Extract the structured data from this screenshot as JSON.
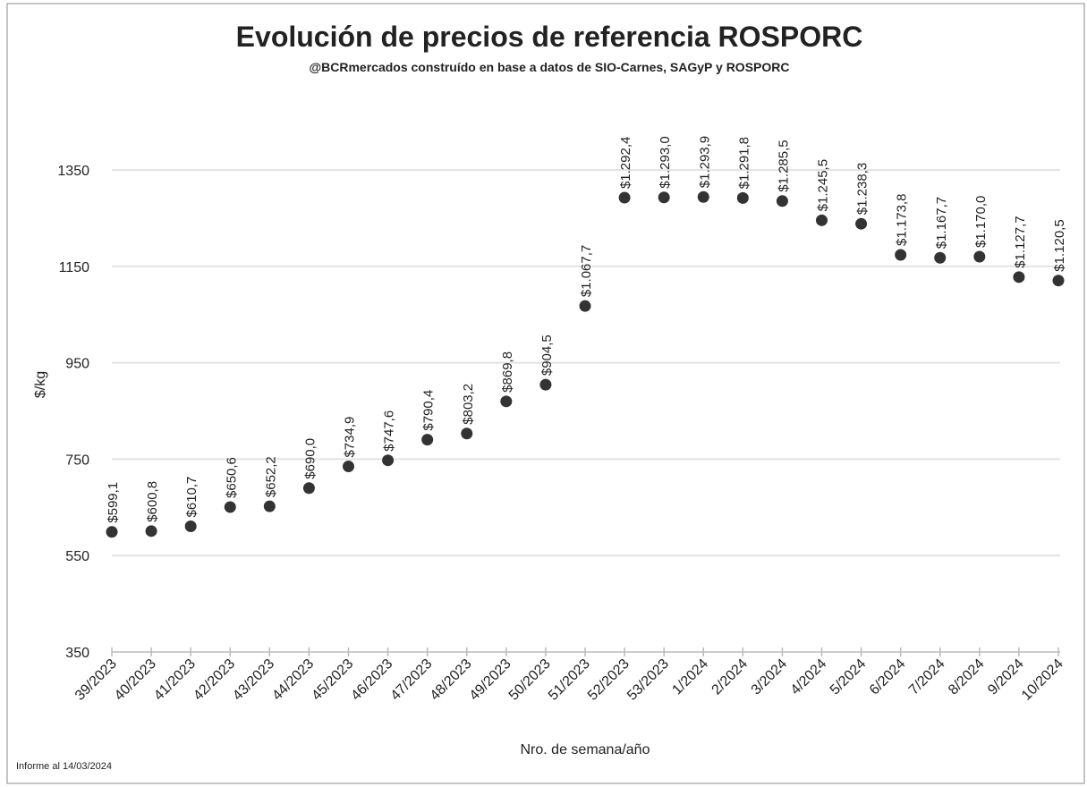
{
  "chart_data": {
    "type": "line",
    "title": "Evolución de precios de referencia ROSPORC",
    "subtitle": "@BCRmercados construído en base a datos de SIO-Carnes, SAGyP y ROSPORC",
    "ylabel": "$/kg",
    "xlabel": "Nro. de semana/año",
    "footnote": "Informe al 14/03/2024",
    "categories": [
      "39/2023",
      "40/2023",
      "41/2023",
      "42/2023",
      "43/2023",
      "44/2023",
      "45/2023",
      "46/2023",
      "47/2023",
      "48/2023",
      "49/2023",
      "50/2023",
      "51/2023",
      "52/2023",
      "53/2023",
      "1/2024",
      "2/2024",
      "3/2024",
      "4/2024",
      "5/2024",
      "6/2024",
      "7/2024",
      "8/2024",
      "9/2024",
      "10/2024"
    ],
    "series": [
      {
        "color": "#333333",
        "values": [
          599.1,
          600.8,
          610.7,
          650.6,
          652.2,
          690.0,
          734.9,
          747.6,
          790.4,
          803.2,
          869.8,
          904.5,
          1067.7,
          1292.4,
          1293.0,
          1293.9,
          1291.8,
          1285.5,
          1245.5,
          1238.3,
          1173.8,
          1167.7,
          1170.0,
          1127.7,
          1120.5
        ],
        "value_labels": [
          "$599,1",
          "$600,8",
          "$610,7",
          "$650,6",
          "$652,2",
          "$690,0",
          "$734,9",
          "$747,6",
          "$790,4",
          "$803,2",
          "$869,8",
          "$904,5",
          "$1.067,7",
          "$1.292,4",
          "$1.293,0",
          "$1.293,9",
          "$1.291,8",
          "$1.285,5",
          "$1.245,5",
          "$1.238,3",
          "$1.173,8",
          "$1.167,7",
          "$1.170,0",
          "$1.127,7",
          "$1.120,5"
        ]
      }
    ],
    "ylim": [
      350,
      1350
    ],
    "yticks": [
      350,
      550,
      750,
      950,
      1150,
      1350
    ],
    "grid": true
  }
}
